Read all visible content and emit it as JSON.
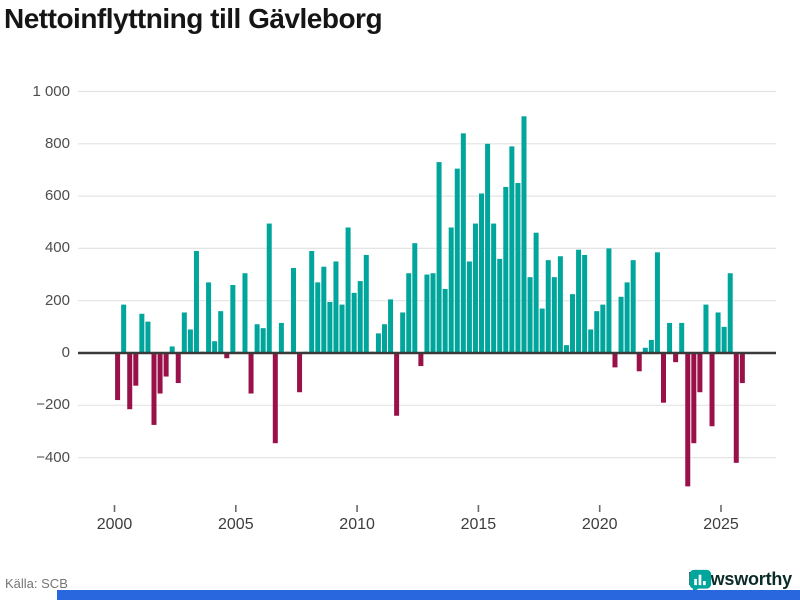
{
  "page": {
    "title": "Nettoinflyttning till Gävleborg"
  },
  "footer": {
    "source": "Källa: SCB"
  },
  "branding": {
    "logo_text": "Newsworthy",
    "logo_color": "#00a59b",
    "logo_text_color": "#0c2b28"
  },
  "bottom_strip_color": "#2867de",
  "chart_data": {
    "type": "bar",
    "title": "Nettoinflyttning till Gävleborg",
    "frequency": "quarterly",
    "start_period": "2000-Q1",
    "end_period": "2025-Q4",
    "legend": "none",
    "grid": "horizontal",
    "ylim": [
      -540,
      1050
    ],
    "x_tick_labels": [
      "2000",
      "2005",
      "2010",
      "2015",
      "2020",
      "2025"
    ],
    "x_tick_years": [
      2000,
      2005,
      2010,
      2015,
      2020,
      2025
    ],
    "y_tick_labels": [
      "1 000",
      "800",
      "600",
      "400",
      "200",
      "0",
      "−200",
      "−400"
    ],
    "y_tick_values": [
      1000,
      800,
      600,
      400,
      200,
      0,
      -200,
      -400
    ],
    "positive_color": "#00a59b",
    "negative_color": "#9a1048",
    "values": [
      -180,
      185,
      -215,
      -125,
      150,
      120,
      -275,
      -155,
      -90,
      25,
      -115,
      155,
      90,
      390,
      5,
      270,
      45,
      160,
      -20,
      260,
      5,
      305,
      -155,
      110,
      95,
      495,
      -345,
      115,
      5,
      325,
      -150,
      5,
      390,
      270,
      330,
      195,
      350,
      185,
      480,
      230,
      275,
      375,
      5,
      75,
      110,
      205,
      -240,
      155,
      305,
      420,
      -50,
      300,
      305,
      730,
      245,
      480,
      705,
      840,
      350,
      495,
      610,
      800,
      495,
      360,
      635,
      790,
      650,
      905,
      290,
      460,
      170,
      355,
      290,
      370,
      30,
      225,
      395,
      375,
      90,
      160,
      185,
      400,
      -55,
      215,
      270,
      355,
      -70,
      20,
      50,
      385,
      -190,
      115,
      -35,
      115,
      -510,
      -345,
      -150,
      185,
      -280,
      155,
      100,
      305,
      -420,
      -115
    ]
  }
}
